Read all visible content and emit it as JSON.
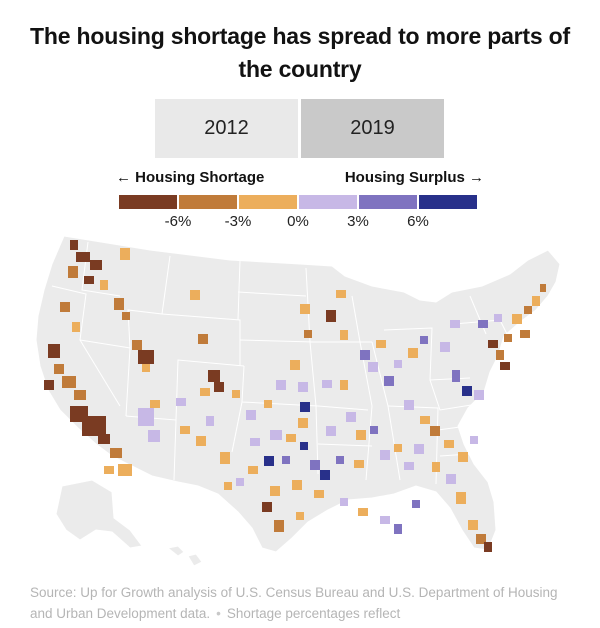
{
  "title": "The housing shortage has spread to more parts of the country",
  "year_toggle": {
    "options": [
      {
        "label": "2012",
        "selected": false
      },
      {
        "label": "2019",
        "selected": true
      }
    ]
  },
  "legend": {
    "left_label": "Housing Shortage",
    "right_label": "Housing Surplus",
    "left_arrow": "←",
    "right_arrow": "→",
    "colors": [
      "#7a3b22",
      "#c07b3a",
      "#ecae5c",
      "#c7b8e6",
      "#7f73c0",
      "#28308a"
    ],
    "ticks": [
      "-6%",
      "-3%",
      "0%",
      "3%",
      "6%"
    ]
  },
  "map_colors": {
    "land": "#ebebeb",
    "state_border": "#ffffff"
  },
  "source": {
    "text": "Source: Up for Growth analysis of U.S. Census Bureau and U.S. Department of Housing and Urban Development data.",
    "separator": "•",
    "note": "Shortage percentages reflect"
  }
}
